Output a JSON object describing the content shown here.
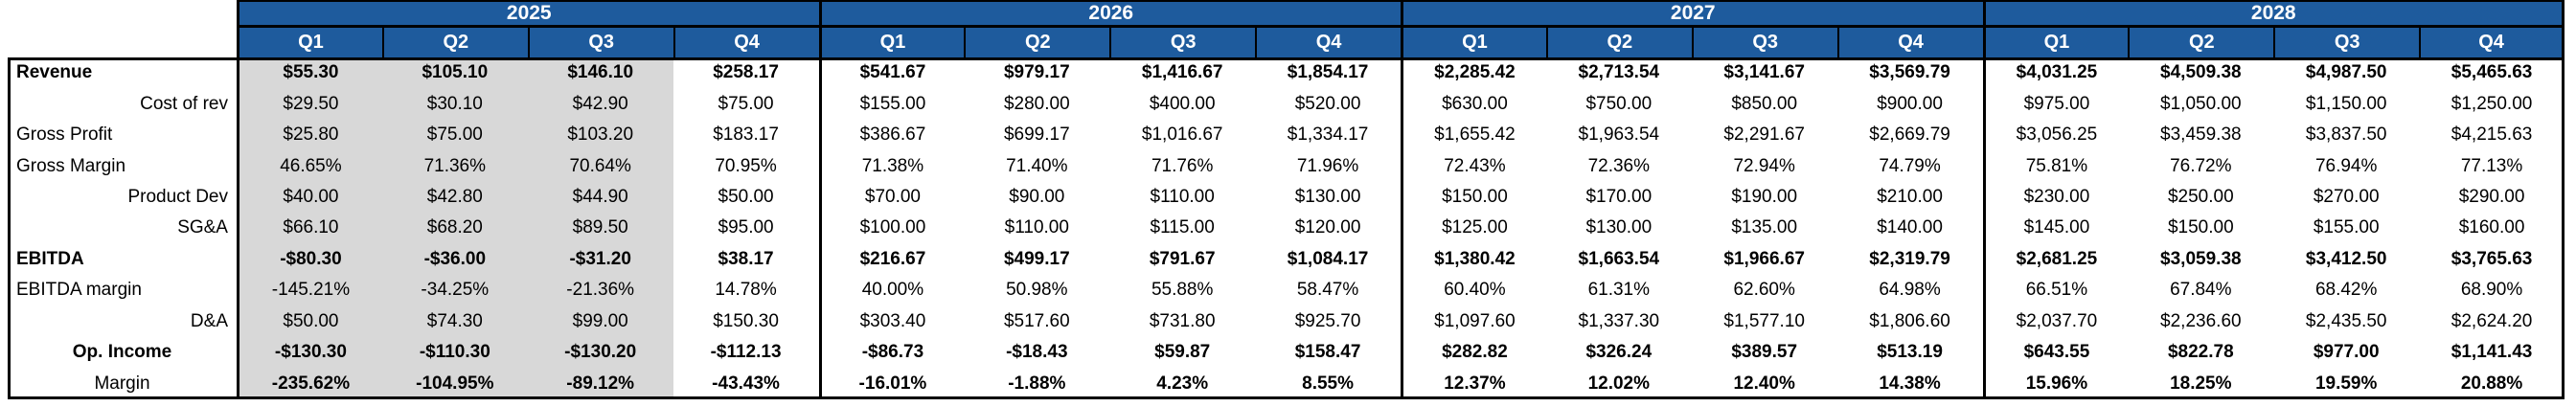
{
  "colors": {
    "header_blue": "#1E5B9D",
    "shaded_column_gray": "#D8D8D8",
    "grid_line_black": "#000000"
  },
  "table": {
    "years": [
      "2025",
      "2026",
      "2027",
      "2028"
    ],
    "quarter_labels": [
      "Q1",
      "Q2",
      "Q3",
      "Q4",
      "Q1",
      "Q2",
      "Q3",
      "Q4",
      "Q1",
      "Q2",
      "Q3",
      "Q4",
      "Q1",
      "Q2",
      "Q3",
      "Q4"
    ],
    "rows": [
      {
        "label": "Revenue",
        "values": [
          "$55.30",
          "$105.10",
          "$146.10",
          "$258.17",
          "$541.67",
          "$979.17",
          "$1,416.67",
          "$1,854.17",
          "$2,285.42",
          "$2,713.54",
          "$3,141.67",
          "$3,569.79",
          "$4,031.25",
          "$4,509.38",
          "$4,987.50",
          "$5,465.63"
        ]
      },
      {
        "label": "Cost of rev",
        "values": [
          "$29.50",
          "$30.10",
          "$42.90",
          "$75.00",
          "$155.00",
          "$280.00",
          "$400.00",
          "$520.00",
          "$630.00",
          "$750.00",
          "$850.00",
          "$900.00",
          "$975.00",
          "$1,050.00",
          "$1,150.00",
          "$1,250.00"
        ]
      },
      {
        "label": "Gross Profit",
        "values": [
          "$25.80",
          "$75.00",
          "$103.20",
          "$183.17",
          "$386.67",
          "$699.17",
          "$1,016.67",
          "$1,334.17",
          "$1,655.42",
          "$1,963.54",
          "$2,291.67",
          "$2,669.79",
          "$3,056.25",
          "$3,459.38",
          "$3,837.50",
          "$4,215.63"
        ]
      },
      {
        "label": "Gross Margin",
        "values": [
          "46.65%",
          "71.36%",
          "70.64%",
          "70.95%",
          "71.38%",
          "71.40%",
          "71.76%",
          "71.96%",
          "72.43%",
          "72.36%",
          "72.94%",
          "74.79%",
          "75.81%",
          "76.72%",
          "76.94%",
          "77.13%"
        ]
      },
      {
        "label": "Product Dev",
        "values": [
          "$40.00",
          "$42.80",
          "$44.90",
          "$50.00",
          "$70.00",
          "$90.00",
          "$110.00",
          "$130.00",
          "$150.00",
          "$170.00",
          "$190.00",
          "$210.00",
          "$230.00",
          "$250.00",
          "$270.00",
          "$290.00"
        ]
      },
      {
        "label": "SG&A",
        "values": [
          "$66.10",
          "$68.20",
          "$89.50",
          "$95.00",
          "$100.00",
          "$110.00",
          "$115.00",
          "$120.00",
          "$125.00",
          "$130.00",
          "$135.00",
          "$140.00",
          "$145.00",
          "$150.00",
          "$155.00",
          "$160.00"
        ]
      },
      {
        "label": "EBITDA",
        "values": [
          "-$80.30",
          "-$36.00",
          "-$31.20",
          "$38.17",
          "$216.67",
          "$499.17",
          "$791.67",
          "$1,084.17",
          "$1,380.42",
          "$1,663.54",
          "$1,966.67",
          "$2,319.79",
          "$2,681.25",
          "$3,059.38",
          "$3,412.50",
          "$3,765.63"
        ]
      },
      {
        "label": "EBITDA margin",
        "values": [
          "-145.21%",
          "-34.25%",
          "-21.36%",
          "14.78%",
          "40.00%",
          "50.98%",
          "55.88%",
          "58.47%",
          "60.40%",
          "61.31%",
          "62.60%",
          "64.98%",
          "66.51%",
          "67.84%",
          "68.42%",
          "68.90%"
        ]
      },
      {
        "label": "D&A",
        "values": [
          "$50.00",
          "$74.30",
          "$99.00",
          "$150.30",
          "$303.40",
          "$517.60",
          "$731.80",
          "$925.70",
          "$1,097.60",
          "$1,337.30",
          "$1,577.10",
          "$1,806.60",
          "$2,037.70",
          "$2,236.60",
          "$2,435.50",
          "$2,624.20"
        ]
      },
      {
        "label": "Op. Income",
        "values": [
          "-$130.30",
          "-$110.30",
          "-$130.20",
          "-$112.13",
          "-$86.73",
          "-$18.43",
          "$59.87",
          "$158.47",
          "$282.82",
          "$326.24",
          "$389.57",
          "$513.19",
          "$643.55",
          "$822.78",
          "$977.00",
          "$1,141.43"
        ]
      },
      {
        "label": "Margin",
        "values": [
          "-235.62%",
          "-104.95%",
          "-89.12%",
          "-43.43%",
          "-16.01%",
          "-1.88%",
          "4.23%",
          "8.55%",
          "12.37%",
          "12.02%",
          "12.40%",
          "14.38%",
          "15.96%",
          "18.25%",
          "19.59%",
          "20.88%"
        ]
      }
    ]
  },
  "chart_data": {
    "type": "table",
    "column_groups": [
      "2025",
      "2026",
      "2027",
      "2028"
    ],
    "columns": [
      "2025 Q1",
      "2025 Q2",
      "2025 Q3",
      "2025 Q4",
      "2026 Q1",
      "2026 Q2",
      "2026 Q3",
      "2026 Q4",
      "2027 Q1",
      "2027 Q2",
      "2027 Q3",
      "2027 Q4",
      "2028 Q1",
      "2028 Q2",
      "2028 Q3",
      "2028 Q4"
    ],
    "highlighted_columns": [
      "2025 Q1",
      "2025 Q2",
      "2025 Q3"
    ],
    "rows": [
      {
        "label": "Revenue",
        "unit": "$",
        "values": [
          55.3,
          105.1,
          146.1,
          258.17,
          541.67,
          979.17,
          1416.67,
          1854.17,
          2285.42,
          2713.54,
          3141.67,
          3569.79,
          4031.25,
          4509.38,
          4987.5,
          5465.63
        ]
      },
      {
        "label": "Cost of rev",
        "unit": "$",
        "values": [
          29.5,
          30.1,
          42.9,
          75.0,
          155.0,
          280.0,
          400.0,
          520.0,
          630.0,
          750.0,
          850.0,
          900.0,
          975.0,
          1050.0,
          1150.0,
          1250.0
        ]
      },
      {
        "label": "Gross Profit",
        "unit": "$",
        "values": [
          25.8,
          75.0,
          103.2,
          183.17,
          386.67,
          699.17,
          1016.67,
          1334.17,
          1655.42,
          1963.54,
          2291.67,
          2669.79,
          3056.25,
          3459.38,
          3837.5,
          4215.63
        ]
      },
      {
        "label": "Gross Margin",
        "unit": "%",
        "values": [
          46.65,
          71.36,
          70.64,
          70.95,
          71.38,
          71.4,
          71.76,
          71.96,
          72.43,
          72.36,
          72.94,
          74.79,
          75.81,
          76.72,
          76.94,
          77.13
        ]
      },
      {
        "label": "Product Dev",
        "unit": "$",
        "values": [
          40.0,
          42.8,
          44.9,
          50.0,
          70.0,
          90.0,
          110.0,
          130.0,
          150.0,
          170.0,
          190.0,
          210.0,
          230.0,
          250.0,
          270.0,
          290.0
        ]
      },
      {
        "label": "SG&A",
        "unit": "$",
        "values": [
          66.1,
          68.2,
          89.5,
          95.0,
          100.0,
          110.0,
          115.0,
          120.0,
          125.0,
          130.0,
          135.0,
          140.0,
          145.0,
          150.0,
          155.0,
          160.0
        ]
      },
      {
        "label": "EBITDA",
        "unit": "$",
        "values": [
          -80.3,
          -36.0,
          -31.2,
          38.17,
          216.67,
          499.17,
          791.67,
          1084.17,
          1380.42,
          1663.54,
          1966.67,
          2319.79,
          2681.25,
          3059.38,
          3412.5,
          3765.63
        ]
      },
      {
        "label": "EBITDA margin",
        "unit": "%",
        "values": [
          -145.21,
          -34.25,
          -21.36,
          14.78,
          40.0,
          50.98,
          55.88,
          58.47,
          60.4,
          61.31,
          62.6,
          64.98,
          66.51,
          67.84,
          68.42,
          68.9
        ]
      },
      {
        "label": "D&A",
        "unit": "$",
        "values": [
          50.0,
          74.3,
          99.0,
          150.3,
          303.4,
          517.6,
          731.8,
          925.7,
          1097.6,
          1337.3,
          1577.1,
          1806.6,
          2037.7,
          2236.6,
          2435.5,
          2624.2
        ]
      },
      {
        "label": "Op. Income",
        "unit": "$",
        "values": [
          -130.3,
          -110.3,
          -130.2,
          -112.13,
          -86.73,
          -18.43,
          59.87,
          158.47,
          282.82,
          326.24,
          389.57,
          513.19,
          643.55,
          822.78,
          977.0,
          1141.43
        ]
      },
      {
        "label": "Margin",
        "unit": "%",
        "values": [
          -235.62,
          -104.95,
          -89.12,
          -43.43,
          -16.01,
          -1.88,
          4.23,
          8.55,
          12.37,
          12.02,
          12.4,
          14.38,
          15.96,
          18.25,
          19.59,
          20.88
        ]
      }
    ]
  }
}
